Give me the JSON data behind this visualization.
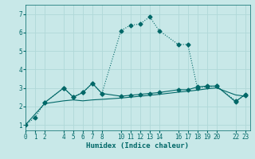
{
  "bg_color": "#c8e8e8",
  "grid_color": "#b0d8d8",
  "line_color": "#006868",
  "xlabel": "Humidex (Indice chaleur)",
  "xlim": [
    0,
    23.5
  ],
  "ylim": [
    0.7,
    7.5
  ],
  "yticks": [
    1,
    2,
    3,
    4,
    5,
    6,
    7
  ],
  "xticks": [
    0,
    1,
    2,
    4,
    5,
    6,
    7,
    8,
    10,
    11,
    12,
    13,
    14,
    16,
    17,
    18,
    19,
    20,
    22,
    23
  ],
  "dotted_x": [
    0,
    1,
    2,
    4,
    5,
    6,
    7,
    8,
    10,
    11,
    12,
    13,
    14,
    16,
    17,
    18,
    19,
    20,
    22,
    23
  ],
  "dotted_y": [
    1.0,
    1.4,
    2.2,
    3.0,
    2.5,
    2.75,
    3.25,
    2.7,
    6.1,
    6.4,
    6.45,
    6.85,
    6.1,
    5.35,
    5.35,
    3.0,
    3.05,
    3.1,
    2.3,
    2.6
  ],
  "solid_mk_x": [
    2,
    4,
    5,
    6,
    7,
    8,
    10,
    11,
    12,
    13,
    14,
    16,
    17,
    18,
    19,
    20,
    22,
    23
  ],
  "solid_mk_y": [
    2.2,
    3.0,
    2.5,
    2.75,
    3.25,
    2.7,
    2.55,
    2.6,
    2.65,
    2.7,
    2.75,
    2.9,
    2.9,
    3.05,
    3.1,
    3.1,
    2.25,
    2.65
  ],
  "smooth_x": [
    0,
    2,
    4,
    5,
    6,
    7,
    8,
    10,
    11,
    12,
    13,
    14,
    16,
    17,
    18,
    19,
    20,
    22,
    23
  ],
  "smooth_y": [
    1.0,
    2.15,
    2.3,
    2.35,
    2.3,
    2.35,
    2.38,
    2.45,
    2.5,
    2.55,
    2.6,
    2.65,
    2.77,
    2.82,
    2.88,
    2.95,
    3.0,
    2.62,
    2.55
  ]
}
